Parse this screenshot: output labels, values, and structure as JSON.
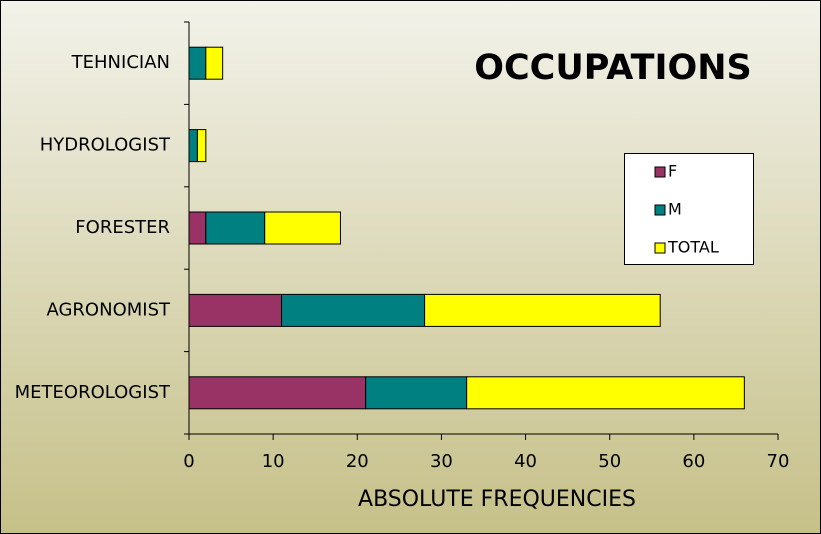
{
  "chart_data": {
    "type": "stacked-barh",
    "title": "OCCUPATIONS",
    "x_label": "ABSOLUTE FREQUENCIES",
    "categories": [
      "METEOROLOGIST",
      "AGRONOMIST",
      "FORESTER",
      "HYDROLOGIST",
      "TEHNICIAN"
    ],
    "series": [
      {
        "name": "F",
        "color": "#993366",
        "values": [
          21,
          11,
          2,
          0,
          0
        ]
      },
      {
        "name": "M",
        "color": "#008080",
        "values": [
          12,
          17,
          7,
          1,
          2
        ]
      },
      {
        "name": "TOTAL",
        "color": "#ffff00",
        "values": [
          33,
          28,
          9,
          1,
          2
        ]
      }
    ],
    "xlim": [
      0,
      70
    ],
    "xticks": [
      0,
      10,
      20,
      30,
      40,
      50,
      60,
      70
    ]
  }
}
